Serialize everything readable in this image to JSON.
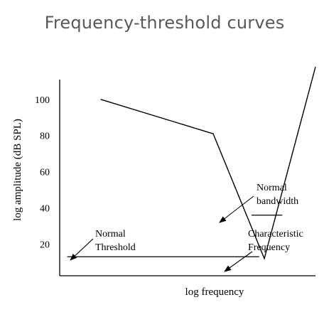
{
  "title": "Frequency-threshold curves",
  "chart_data": {
    "type": "line",
    "title": "Frequency-threshold curves",
    "xlabel": "log frequency",
    "ylabel": "log amplitude (dB SPL)",
    "yticks": [
      20,
      40,
      60,
      80,
      100
    ],
    "ylim": [
      8,
      118
    ],
    "xlim": [
      0,
      1
    ],
    "grid": false,
    "series": [
      {
        "x": [
          0.16,
          0.6,
          0.8,
          1.0
        ],
        "y": [
          100,
          81,
          12,
          118
        ]
      }
    ],
    "normal_threshold_level": 13,
    "normal_threshold_x": [
      0.03,
      0.78
    ],
    "characteristic_frequency_x": 0.8,
    "bandwidth_level": 36,
    "bandwidth_x": [
      0.75,
      0.87
    ],
    "annotations": [
      {
        "lines": [
          "Normal",
          "Threshold"
        ],
        "target": "normal-threshold"
      },
      {
        "lines": [
          "Normal",
          "bandwidth"
        ],
        "target": "normal-bandwidth"
      },
      {
        "lines": [
          "Characteristic",
          "Frequency"
        ],
        "target": "characteristic-frequency"
      }
    ]
  }
}
